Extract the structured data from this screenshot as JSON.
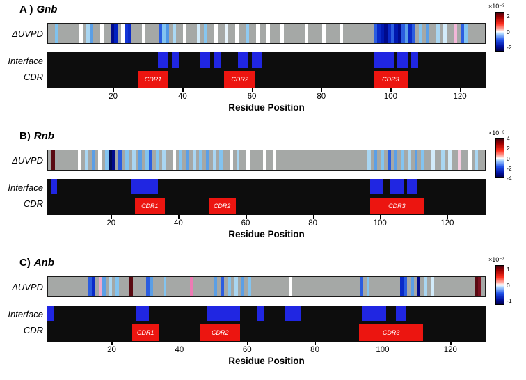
{
  "figure": {
    "xlabel": "Residue Position",
    "exp_label": "×10⁻³",
    "colors": {
      "strip_gray": "#a5a8a6",
      "panel_black": "#0d0d0d",
      "interface_blue": "#2026e2",
      "cdr_red": "#ec1510"
    }
  },
  "chart_data": [
    {
      "type": "heatmap",
      "panel": "A )",
      "title": "Gnb",
      "rows": {
        "uvpd": "ΔUVPD",
        "interface": "Interface",
        "cdr": "CDR"
      },
      "x_range": [
        1,
        126
      ],
      "x_ticks": [
        20,
        40,
        60,
        80,
        100,
        120
      ],
      "colorbar": {
        "min": -2.5,
        "max": 2.5,
        "ticks": [
          2,
          0,
          -2
        ],
        "stops": [
          {
            "pos": 0,
            "color": "#4a000c"
          },
          {
            "pos": 0.12,
            "color": "#a00000"
          },
          {
            "pos": 0.3,
            "color": "#ff3020"
          },
          {
            "pos": 0.44,
            "color": "#ffb4ac"
          },
          {
            "pos": 0.5,
            "color": "#ffffff"
          },
          {
            "pos": 0.56,
            "color": "#aad4ff"
          },
          {
            "pos": 0.72,
            "color": "#2050e8"
          },
          {
            "pos": 0.88,
            "color": "#0010a0"
          },
          {
            "pos": 1,
            "color": "#000050"
          }
        ]
      },
      "uvpd_bars": [
        {
          "p": 3,
          "c": "#7fc2ee"
        },
        {
          "p": 10,
          "c": "#ffffff"
        },
        {
          "p": 12,
          "c": "#a9d6f2"
        },
        {
          "p": 13,
          "c": "#5b9fe6"
        },
        {
          "p": 16,
          "c": "#ffffff"
        },
        {
          "p": 19,
          "c": "#000a8c"
        },
        {
          "p": 20,
          "c": "#0020c0"
        },
        {
          "p": 22,
          "c": "#ffffff"
        },
        {
          "p": 23,
          "c": "#1336d6"
        },
        {
          "p": 24,
          "c": "#0a2ac8"
        },
        {
          "p": 28,
          "c": "#ffffff"
        },
        {
          "p": 33,
          "c": "#2b5de0"
        },
        {
          "p": 34,
          "c": "#83c4f0"
        },
        {
          "p": 35,
          "c": "#4f97e6"
        },
        {
          "p": 37,
          "c": "#aad8f4"
        },
        {
          "p": 40,
          "c": "#ffffff"
        },
        {
          "p": 44,
          "c": "#d2ebfa"
        },
        {
          "p": 46,
          "c": "#86c6f0"
        },
        {
          "p": 49,
          "c": "#ffffff"
        },
        {
          "p": 52,
          "c": "#e8f4fc"
        },
        {
          "p": 55,
          "c": "#ffffff"
        },
        {
          "p": 58,
          "c": "#8fcaf2"
        },
        {
          "p": 61,
          "c": "#ffffff"
        },
        {
          "p": 64,
          "c": "#ffffff"
        },
        {
          "p": 68,
          "c": "#ffffff"
        },
        {
          "p": 75,
          "c": "#ffffff"
        },
        {
          "p": 80,
          "c": "#ffffff"
        },
        {
          "p": 85,
          "c": "#ffffff"
        },
        {
          "p": 95,
          "c": "#2b5de0"
        },
        {
          "p": 96,
          "c": "#0a2ac8"
        },
        {
          "p": 97,
          "c": "#0018b0"
        },
        {
          "p": 98,
          "c": "#000a8c"
        },
        {
          "p": 99,
          "c": "#0a2ac8"
        },
        {
          "p": 100,
          "c": "#2b5de0"
        },
        {
          "p": 101,
          "c": "#0018b0"
        },
        {
          "p": 102,
          "c": "#000a8c"
        },
        {
          "p": 103,
          "c": "#2b5de0"
        },
        {
          "p": 104,
          "c": "#5b9fe6"
        },
        {
          "p": 105,
          "c": "#0a2ac8"
        },
        {
          "p": 106,
          "c": "#2b5de0"
        },
        {
          "p": 108,
          "c": "#83c4f0"
        },
        {
          "p": 110,
          "c": "#5b9fe6"
        },
        {
          "p": 113,
          "c": "#a9d6f2"
        },
        {
          "p": 115,
          "c": "#d2ebfa"
        },
        {
          "p": 118,
          "c": "#f2b6d8"
        },
        {
          "p": 120,
          "c": "#2b5de0"
        },
        {
          "p": 121,
          "c": "#83c4f0"
        }
      ],
      "interface_blocks": [
        {
          "s": 33,
          "e": 35
        },
        {
          "s": 37,
          "e": 38
        },
        {
          "s": 45,
          "e": 47
        },
        {
          "s": 49,
          "e": 50
        },
        {
          "s": 56,
          "e": 58
        },
        {
          "s": 60,
          "e": 62
        },
        {
          "s": 95,
          "e": 100
        },
        {
          "s": 102,
          "e": 104
        },
        {
          "s": 106,
          "e": 107
        }
      ],
      "cdr_blocks": [
        {
          "label": "CDR1",
          "s": 27,
          "e": 35
        },
        {
          "label": "CDR2",
          "s": 52,
          "e": 60
        },
        {
          "label": "CDR3",
          "s": 95,
          "e": 104
        }
      ]
    },
    {
      "type": "heatmap",
      "panel": "B)",
      "title": "Rnb",
      "rows": {
        "uvpd": "ΔUVPD",
        "interface": "Interface",
        "cdr": "CDR"
      },
      "x_range": [
        1,
        130
      ],
      "x_ticks": [
        20,
        40,
        60,
        80,
        100,
        120
      ],
      "colorbar": {
        "min": -4,
        "max": 4,
        "ticks": [
          4,
          2,
          0,
          -2,
          -4
        ],
        "stops": [
          {
            "pos": 0,
            "color": "#4a000c"
          },
          {
            "pos": 0.12,
            "color": "#a00000"
          },
          {
            "pos": 0.3,
            "color": "#ff3020"
          },
          {
            "pos": 0.44,
            "color": "#ffb4ac"
          },
          {
            "pos": 0.5,
            "color": "#ffffff"
          },
          {
            "pos": 0.56,
            "color": "#aad4ff"
          },
          {
            "pos": 0.72,
            "color": "#2050e8"
          },
          {
            "pos": 0.88,
            "color": "#0010a0"
          },
          {
            "pos": 1,
            "color": "#000050"
          }
        ]
      },
      "uvpd_bars": [
        {
          "p": 2,
          "c": "#5a0a12"
        },
        {
          "p": 10,
          "c": "#ffffff"
        },
        {
          "p": 12,
          "c": "#a9d6f2"
        },
        {
          "p": 14,
          "c": "#5b9fe6"
        },
        {
          "p": 16,
          "c": "#ffffff"
        },
        {
          "p": 18,
          "c": "#83c4f0"
        },
        {
          "p": 19,
          "c": "#000a50"
        },
        {
          "p": 20,
          "c": "#000a8c"
        },
        {
          "p": 22,
          "c": "#2b5de0"
        },
        {
          "p": 24,
          "c": "#83c4f0"
        },
        {
          "p": 26,
          "c": "#a9d6f2"
        },
        {
          "p": 28,
          "c": "#5b9fe6"
        },
        {
          "p": 30,
          "c": "#83c4f0"
        },
        {
          "p": 31,
          "c": "#2b5de0"
        },
        {
          "p": 33,
          "c": "#83c4f0"
        },
        {
          "p": 35,
          "c": "#a9d6f2"
        },
        {
          "p": 38,
          "c": "#ffffff"
        },
        {
          "p": 40,
          "c": "#83c4f0"
        },
        {
          "p": 42,
          "c": "#5b9fe6"
        },
        {
          "p": 44,
          "c": "#a9d6f2"
        },
        {
          "p": 46,
          "c": "#83c4f0"
        },
        {
          "p": 48,
          "c": "#5b9fe6"
        },
        {
          "p": 50,
          "c": "#a9d6f2"
        },
        {
          "p": 52,
          "c": "#83c4f0"
        },
        {
          "p": 55,
          "c": "#ffffff"
        },
        {
          "p": 57,
          "c": "#a9d6f2"
        },
        {
          "p": 60,
          "c": "#ffffff"
        },
        {
          "p": 65,
          "c": "#ffffff"
        },
        {
          "p": 68,
          "c": "#ffffff"
        },
        {
          "p": 96,
          "c": "#a9d6f2"
        },
        {
          "p": 98,
          "c": "#5b9fe6"
        },
        {
          "p": 100,
          "c": "#83c4f0"
        },
        {
          "p": 102,
          "c": "#2b5de0"
        },
        {
          "p": 104,
          "c": "#5b9fe6"
        },
        {
          "p": 106,
          "c": "#83c4f0"
        },
        {
          "p": 108,
          "c": "#a9d6f2"
        },
        {
          "p": 110,
          "c": "#5b9fe6"
        },
        {
          "p": 112,
          "c": "#83c4f0"
        },
        {
          "p": 115,
          "c": "#d2ebfa"
        },
        {
          "p": 118,
          "c": "#a9d6f2"
        },
        {
          "p": 120,
          "c": "#d2ebfa"
        },
        {
          "p": 123,
          "c": "#f6cfe2"
        },
        {
          "p": 126,
          "c": "#ffffff"
        },
        {
          "p": 128,
          "c": "#a9d6f2"
        }
      ],
      "interface_blocks": [
        {
          "s": 2,
          "e": 3
        },
        {
          "s": 26,
          "e": 33
        },
        {
          "s": 97,
          "e": 100
        },
        {
          "s": 103,
          "e": 106
        },
        {
          "s": 108,
          "e": 110
        }
      ],
      "cdr_blocks": [
        {
          "label": "CDR1",
          "s": 27,
          "e": 35
        },
        {
          "label": "CDR2",
          "s": 49,
          "e": 56
        },
        {
          "label": "CDR3",
          "s": 97,
          "e": 112
        }
      ]
    },
    {
      "type": "heatmap",
      "panel": "C)",
      "title": "Anb",
      "rows": {
        "uvpd": "ΔUVPD",
        "interface": "Interface",
        "cdr": "CDR"
      },
      "x_range": [
        1,
        129
      ],
      "x_ticks": [
        20,
        40,
        60,
        80,
        100,
        120
      ],
      "colorbar": {
        "min": -1.25,
        "max": 1.25,
        "ticks": [
          1,
          0,
          -1
        ],
        "stops": [
          {
            "pos": 0,
            "color": "#4a000c"
          },
          {
            "pos": 0.12,
            "color": "#a00000"
          },
          {
            "pos": 0.3,
            "color": "#ff3020"
          },
          {
            "pos": 0.44,
            "color": "#ffb4ac"
          },
          {
            "pos": 0.5,
            "color": "#ffffff"
          },
          {
            "pos": 0.56,
            "color": "#aad4ff"
          },
          {
            "pos": 0.72,
            "color": "#2050e8"
          },
          {
            "pos": 0.88,
            "color": "#0010a0"
          },
          {
            "pos": 1,
            "color": "#000050"
          }
        ]
      },
      "uvpd_bars": [
        {
          "p": 13,
          "c": "#2b5de0"
        },
        {
          "p": 14,
          "c": "#0a2ac8"
        },
        {
          "p": 16,
          "c": "#efa8cc"
        },
        {
          "p": 17,
          "c": "#5b9fe6"
        },
        {
          "p": 19,
          "c": "#a9d6f2"
        },
        {
          "p": 21,
          "c": "#83c4f0"
        },
        {
          "p": 25,
          "c": "#5a0a12"
        },
        {
          "p": 30,
          "c": "#2b5de0"
        },
        {
          "p": 31,
          "c": "#5b9fe6"
        },
        {
          "p": 35,
          "c": "#83c4f0"
        },
        {
          "p": 43,
          "c": "#ee7ab4"
        },
        {
          "p": 50,
          "c": "#5b9fe6"
        },
        {
          "p": 52,
          "c": "#2b5de0"
        },
        {
          "p": 54,
          "c": "#83c4f0"
        },
        {
          "p": 56,
          "c": "#a9d6f2"
        },
        {
          "p": 58,
          "c": "#5b9fe6"
        },
        {
          "p": 60,
          "c": "#83c4f0"
        },
        {
          "p": 72,
          "c": "#ffffff"
        },
        {
          "p": 93,
          "c": "#2b5de0"
        },
        {
          "p": 95,
          "c": "#83c4f0"
        },
        {
          "p": 105,
          "c": "#0a2ac8"
        },
        {
          "p": 106,
          "c": "#2b5de0"
        },
        {
          "p": 108,
          "c": "#5b9fe6"
        },
        {
          "p": 110,
          "c": "#000a8c"
        },
        {
          "p": 112,
          "c": "#a9d6f2"
        },
        {
          "p": 114,
          "c": "#d2ebfa"
        },
        {
          "p": 127,
          "c": "#5a0a12"
        },
        {
          "p": 128,
          "c": "#7a1020"
        }
      ],
      "interface_blocks": [
        {
          "s": 1,
          "e": 2
        },
        {
          "s": 27,
          "e": 30
        },
        {
          "s": 48,
          "e": 57
        },
        {
          "s": 63,
          "e": 64
        },
        {
          "s": 71,
          "e": 75
        },
        {
          "s": 94,
          "e": 100
        },
        {
          "s": 104,
          "e": 106
        }
      ],
      "cdr_blocks": [
        {
          "label": "CDR1",
          "s": 26,
          "e": 33
        },
        {
          "label": "CDR2",
          "s": 46,
          "e": 57
        },
        {
          "label": "CDR3",
          "s": 93,
          "e": 111
        }
      ]
    }
  ]
}
